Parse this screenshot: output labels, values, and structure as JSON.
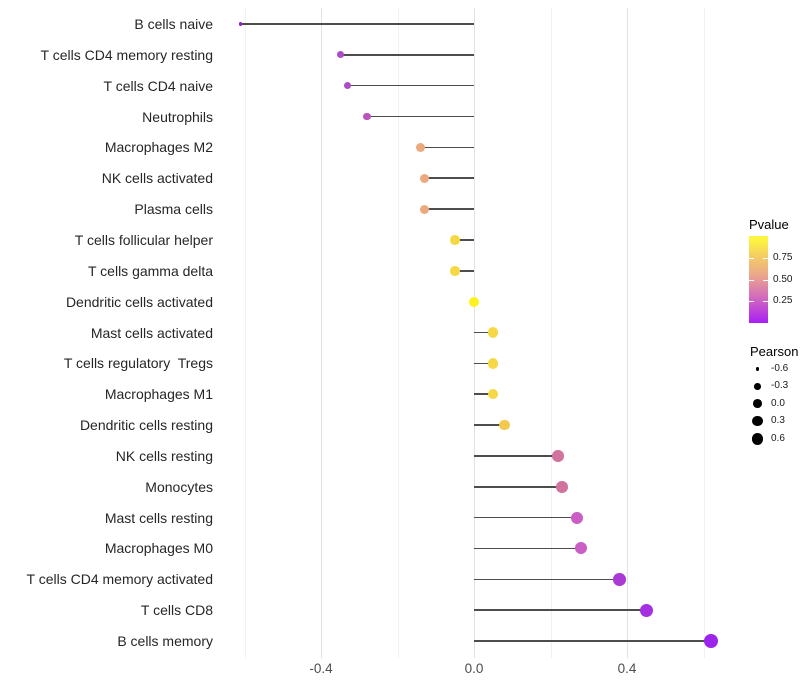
{
  "chart_data": {
    "type": "scatter",
    "variant": "lollipop",
    "title": "",
    "xlabel": "",
    "ylabel": "",
    "xlim": [
      -0.67,
      0.68
    ],
    "grid": "vertical-only",
    "x_major_ticks": [
      -0.4,
      0.0,
      0.4
    ],
    "x_tick_labels": [
      "-0.4",
      "0.0",
      "0.4"
    ],
    "x_minor_gridlines": [
      -0.6,
      -0.2,
      0.2,
      0.6
    ],
    "stem_color": "#4d4d4d",
    "points": [
      {
        "label": "B cells naive",
        "pearson": -0.61,
        "color": "#9318d8"
      },
      {
        "label": "T cells CD4 memory resting",
        "pearson": -0.35,
        "color": "#ad4cc8"
      },
      {
        "label": "T cells CD4 naive",
        "pearson": -0.33,
        "color": "#ad4cc8"
      },
      {
        "label": "Neutrophils",
        "pearson": -0.28,
        "color": "#bd53bd"
      },
      {
        "label": "Macrophages M2",
        "pearson": -0.14,
        "color": "#eda97e"
      },
      {
        "label": "NK cells activated",
        "pearson": -0.13,
        "color": "#eda97e"
      },
      {
        "label": "Plasma cells",
        "pearson": -0.13,
        "color": "#eda97e"
      },
      {
        "label": "T cells follicular helper",
        "pearson": -0.05,
        "color": "#f6d845"
      },
      {
        "label": "T cells gamma delta",
        "pearson": -0.05,
        "color": "#f6d845"
      },
      {
        "label": "Dendritic cells activated",
        "pearson": 0.0,
        "color": "#fdf21e"
      },
      {
        "label": "Mast cells activated",
        "pearson": 0.05,
        "color": "#f6d845"
      },
      {
        "label": "T cells regulatory  Tregs",
        "pearson": 0.05,
        "color": "#f6d845"
      },
      {
        "label": "Macrophages M1",
        "pearson": 0.05,
        "color": "#f6d845"
      },
      {
        "label": "Dendritic cells resting",
        "pearson": 0.08,
        "color": "#f2c94e"
      },
      {
        "label": "NK cells resting",
        "pearson": 0.22,
        "color": "#d0739d"
      },
      {
        "label": "Monocytes",
        "pearson": 0.23,
        "color": "#d0739d"
      },
      {
        "label": "Mast cells resting",
        "pearson": 0.27,
        "color": "#ca5ec4"
      },
      {
        "label": "Macrophages M0",
        "pearson": 0.28,
        "color": "#ca5ec4"
      },
      {
        "label": "T cells CD4 memory activated",
        "pearson": 0.38,
        "color": "#aa39d6"
      },
      {
        "label": "T cells CD8",
        "pearson": 0.45,
        "color": "#a430e2"
      },
      {
        "label": "B cells memory",
        "pearson": 0.62,
        "color": "#9d24ea"
      }
    ],
    "legend": {
      "position": "right",
      "pvalue": {
        "title": "Pvalue",
        "tick_labels": [
          "0.75",
          "0.50",
          "0.25"
        ],
        "tick_values": [
          0.75,
          0.5,
          0.25
        ],
        "range": [
          0,
          1
        ],
        "gradient_stops": [
          {
            "pos": 0,
            "color": "#a81ef5"
          },
          {
            "pos": 20,
            "color": "#c653cf"
          },
          {
            "pos": 35,
            "color": "#d877b2"
          },
          {
            "pos": 55,
            "color": "#eba78c"
          },
          {
            "pos": 78,
            "color": "#f5cf63"
          },
          {
            "pos": 93,
            "color": "#fbf043"
          },
          {
            "pos": 100,
            "color": "#fdf73d"
          }
        ]
      },
      "pearson": {
        "title": "Pearson",
        "size_labels": [
          "-0.6",
          "-0.3",
          "0.0",
          "0.3",
          "0.6"
        ],
        "size_values": [
          -0.6,
          -0.3,
          0.0,
          0.3,
          0.6
        ],
        "dot_color": "#000000"
      }
    }
  }
}
